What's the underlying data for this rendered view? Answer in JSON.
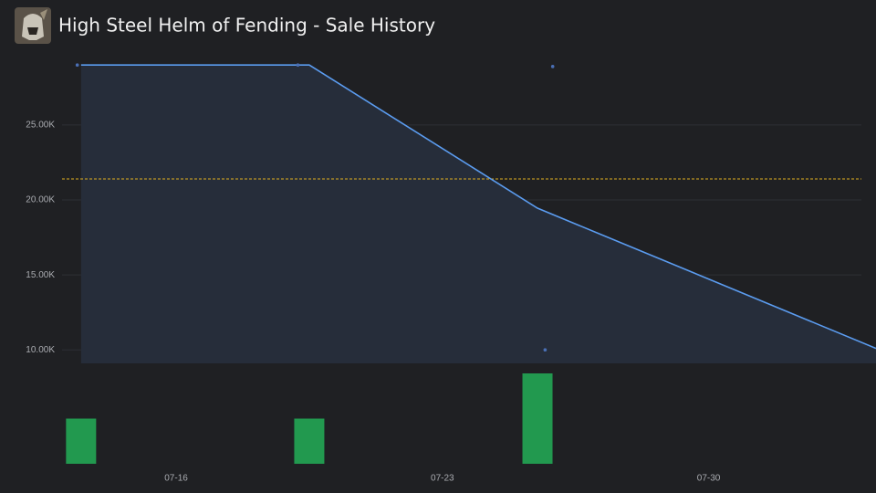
{
  "title": "High Steel Helm of Fending - Sale History",
  "chart_data": [
    {
      "type": "line",
      "x": [
        13.5,
        19.5,
        25.5,
        34.4
      ],
      "values": [
        29000,
        29000,
        19450,
        10100
      ],
      "color": "#5b9cf0",
      "fill": "#262d3a",
      "points": {
        "x": [
          13.4,
          19.2,
          25.9,
          25.7
        ],
        "values": [
          29000,
          29000,
          28900,
          10000
        ],
        "color": "#4a6fb5"
      },
      "reference_line": 21400,
      "reference_color": "#e0b020",
      "xlim": [
        13,
        34.4
      ],
      "ylim": [
        9100,
        29500
      ],
      "yticks": [
        {
          "value": 10000,
          "label": "10.00K"
        },
        {
          "value": 15000,
          "label": "15.00K"
        },
        {
          "value": 20000,
          "label": "20.00K"
        },
        {
          "value": 25000,
          "label": "25.00K"
        }
      ],
      "grid": true
    },
    {
      "type": "bar",
      "x": [
        13.5,
        19.5,
        25.5
      ],
      "values": [
        1,
        1,
        2
      ],
      "color": "#22994f",
      "xlim": [
        13,
        34.4
      ],
      "ylim": [
        0,
        2
      ],
      "xticks": [
        {
          "value": 16,
          "label": "07-16"
        },
        {
          "value": 23,
          "label": "07-23"
        },
        {
          "value": 30,
          "label": "07-30"
        }
      ]
    }
  ]
}
